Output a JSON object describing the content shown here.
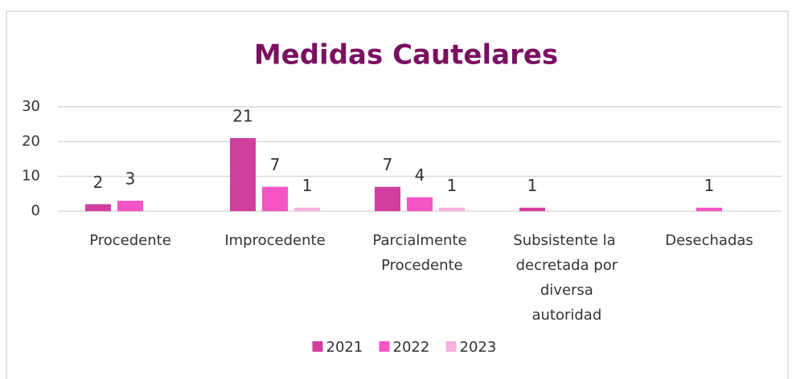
{
  "chart_data": {
    "type": "bar",
    "title": "Medidas Cautelares",
    "categories": [
      "Procedente",
      "Improcedente",
      "Parcialmente Procedente",
      "Subsistente la decretada por diversa autoridad",
      "Desechadas"
    ],
    "series": [
      {
        "name": "2021",
        "color": "#d03f9e",
        "values": [
          2,
          21,
          7,
          1,
          null
        ]
      },
      {
        "name": "2022",
        "color": "#f454c4",
        "values": [
          3,
          7,
          4,
          null,
          1
        ]
      },
      {
        "name": "2023",
        "color": "#f7b0e0",
        "values": [
          null,
          1,
          1,
          null,
          null
        ]
      }
    ],
    "ylim": [
      0,
      30
    ],
    "yticks": [
      0,
      10,
      20,
      30
    ],
    "grid": true,
    "legend": "bottom"
  }
}
